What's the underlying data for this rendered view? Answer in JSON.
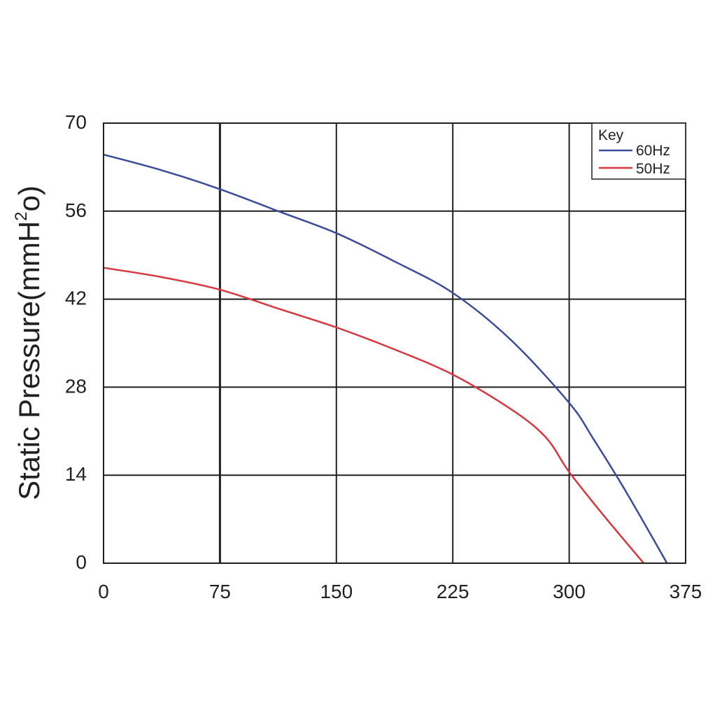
{
  "chart_data": {
    "type": "line",
    "title": "",
    "xlabel": "",
    "ylabel": "Static Pressure(mmH",
    "ylabel_superscript": "2",
    "ylabel_suffix": "o)",
    "xlim": [
      0,
      375
    ],
    "ylim": [
      0,
      70
    ],
    "x_ticks": [
      "0",
      "75",
      "150",
      "225",
      "300",
      "375"
    ],
    "y_ticks": [
      "0",
      "14",
      "28",
      "42",
      "56",
      "70"
    ],
    "grid": true,
    "legend": {
      "title": "Key",
      "placement": "top-right"
    },
    "series": [
      {
        "name": "60Hz",
        "color": "#3a4a9c",
        "points": [
          [
            0,
            65
          ],
          [
            37.5,
            62.5
          ],
          [
            75,
            59.5
          ],
          [
            112.5,
            56
          ],
          [
            150,
            52.5
          ],
          [
            187.5,
            48
          ],
          [
            225,
            43
          ],
          [
            262.5,
            35.5
          ],
          [
            300,
            25.5
          ],
          [
            315,
            20
          ],
          [
            337.5,
            11
          ],
          [
            363,
            0
          ]
        ]
      },
      {
        "name": "50Hz",
        "color": "#d9363e",
        "points": [
          [
            0,
            47
          ],
          [
            37.5,
            45.5
          ],
          [
            75,
            43.5
          ],
          [
            112.5,
            40.5
          ],
          [
            150,
            37.5
          ],
          [
            187.5,
            34
          ],
          [
            225,
            30
          ],
          [
            262.5,
            24.5
          ],
          [
            285,
            20
          ],
          [
            300,
            14.5
          ],
          [
            322.5,
            7.5
          ],
          [
            348,
            0
          ]
        ]
      }
    ]
  }
}
